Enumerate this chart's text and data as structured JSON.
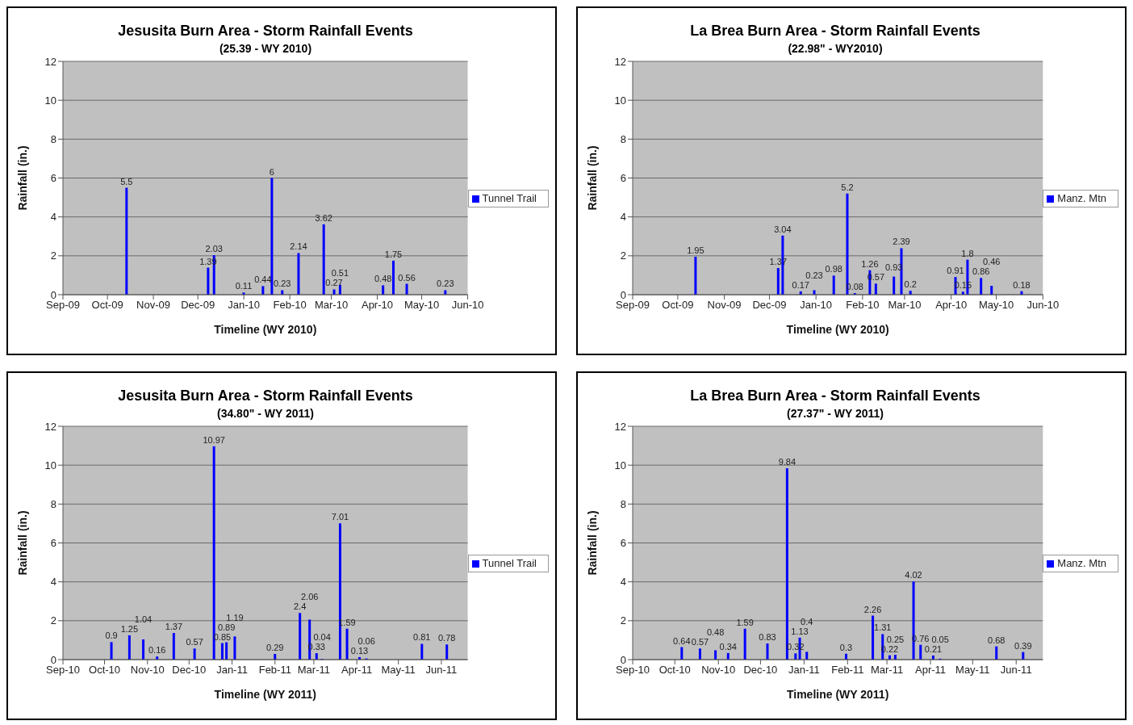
{
  "chart_data": [
    {
      "type": "bar",
      "title": "Jesusita Burn Area - Storm Rainfall Events",
      "subtitle": "(25.39 - WY 2010)",
      "xlabel": "Timeline (WY 2010)",
      "ylabel": "Rainfall (in.)",
      "x": [
        "2009-10-14",
        "2009-12-08",
        "2009-12-12",
        "2010-01-01",
        "2010-01-14",
        "2010-01-20",
        "2010-01-27",
        "2010-02-07",
        "2010-02-24",
        "2010-03-03",
        "2010-03-07",
        "2010-04-05",
        "2010-04-12",
        "2010-04-21",
        "2010-05-17"
      ],
      "series": [
        {
          "name": "Tunnel Trail",
          "color": "#0000ff",
          "values": [
            5.5,
            1.39,
            2.03,
            0.11,
            0.44,
            6,
            0.23,
            2.14,
            3.62,
            0.27,
            0.51,
            0.48,
            1.75,
            0.56,
            0.23
          ]
        }
      ],
      "xlim": [
        "2009-09-01",
        "2010-06-01"
      ],
      "xticks": [
        {
          "value": "2009-09-01",
          "label": "Sep-09"
        },
        {
          "value": "2009-10-01",
          "label": "Oct-09"
        },
        {
          "value": "2009-11-01",
          "label": "Nov-09"
        },
        {
          "value": "2009-12-01",
          "label": "Dec-09"
        },
        {
          "value": "2010-01-01",
          "label": "Jan-10"
        },
        {
          "value": "2010-02-01",
          "label": "Feb-10"
        },
        {
          "value": "2010-03-01",
          "label": "Mar-10"
        },
        {
          "value": "2010-04-01",
          "label": "Apr-10"
        },
        {
          "value": "2010-05-01",
          "label": "May-10"
        },
        {
          "value": "2010-06-01",
          "label": "Jun-10"
        }
      ],
      "ylim": [
        0,
        12
      ],
      "yticks": [
        0,
        2,
        4,
        6,
        8,
        10,
        12
      ],
      "grid": "y",
      "legend": "right",
      "data_labels": true
    },
    {
      "type": "bar",
      "title": "La Brea Burn Area - Storm Rainfall Events",
      "subtitle": "(22.98\" - WY2010)",
      "xlabel": "Timeline (WY 2010)",
      "ylabel": "Rainfall (in.)",
      "x": [
        "2009-10-13",
        "2009-12-07",
        "2009-12-10",
        "2009-12-22",
        "2009-12-31",
        "2010-01-13",
        "2010-01-22",
        "2010-01-27",
        "2010-02-06",
        "2010-02-10",
        "2010-02-22",
        "2010-02-27",
        "2010-03-05",
        "2010-04-04",
        "2010-04-09",
        "2010-04-12",
        "2010-04-21",
        "2010-04-28",
        "2010-05-18"
      ],
      "series": [
        {
          "name": "Manz. Mtn",
          "color": "#0000ff",
          "values": [
            1.95,
            1.37,
            3.04,
            0.17,
            0.23,
            0.98,
            5.2,
            0.08,
            1.26,
            0.57,
            0.93,
            2.39,
            0.2,
            0.91,
            0.15,
            1.8,
            0.86,
            0.46,
            0.18
          ]
        }
      ],
      "xlim": [
        "2009-09-01",
        "2010-06-01"
      ],
      "xticks": [
        {
          "value": "2009-09-01",
          "label": "Sep-09"
        },
        {
          "value": "2009-10-01",
          "label": "Oct-09"
        },
        {
          "value": "2009-11-01",
          "label": "Nov-09"
        },
        {
          "value": "2009-12-01",
          "label": "Dec-09"
        },
        {
          "value": "2010-01-01",
          "label": "Jan-10"
        },
        {
          "value": "2010-02-01",
          "label": "Feb-10"
        },
        {
          "value": "2010-03-01",
          "label": "Mar-10"
        },
        {
          "value": "2010-04-01",
          "label": "Apr-10"
        },
        {
          "value": "2010-05-01",
          "label": "May-10"
        },
        {
          "value": "2010-06-01",
          "label": "Jun-10"
        }
      ],
      "ylim": [
        0,
        12
      ],
      "yticks": [
        0,
        2,
        4,
        6,
        8,
        10,
        12
      ],
      "grid": "y",
      "legend": "right",
      "data_labels": true
    },
    {
      "type": "bar",
      "title": "Jesusita Burn Area - Storm Rainfall Events",
      "subtitle": "(34.80\" - WY 2011)",
      "xlabel": "Timeline (WY 2011)",
      "ylabel": "Rainfall (in.)",
      "x": [
        "2010-10-06",
        "2010-10-19",
        "2010-10-29",
        "2010-11-08",
        "2010-11-20",
        "2010-12-05",
        "2010-12-19",
        "2010-12-25",
        "2010-12-28",
        "2011-01-03",
        "2011-02-01",
        "2011-02-19",
        "2011-02-26",
        "2011-03-03",
        "2011-03-07",
        "2011-03-20",
        "2011-03-25",
        "2011-04-03",
        "2011-04-08",
        "2011-05-18",
        "2011-06-05"
      ],
      "series": [
        {
          "name": "Tunnel Trail",
          "color": "#0000ff",
          "values": [
            0.9,
            1.25,
            1.04,
            0.16,
            1.37,
            0.57,
            10.97,
            0.85,
            0.89,
            1.19,
            0.29,
            2.4,
            2.06,
            0.33,
            0.04,
            7.01,
            1.59,
            0.13,
            0.06,
            0.81,
            0.78
          ]
        }
      ],
      "xlim": [
        "2010-09-01",
        "2011-06-20"
      ],
      "xticks": [
        {
          "value": "2010-09-01",
          "label": "Sep-10"
        },
        {
          "value": "2010-10-01",
          "label": "Oct-10"
        },
        {
          "value": "2010-11-01",
          "label": "Nov-10"
        },
        {
          "value": "2010-12-01",
          "label": "Dec-10"
        },
        {
          "value": "2011-01-01",
          "label": "Jan-11"
        },
        {
          "value": "2011-02-01",
          "label": "Feb-11"
        },
        {
          "value": "2011-03-01",
          "label": "Mar-11"
        },
        {
          "value": "2011-04-01",
          "label": "Apr-11"
        },
        {
          "value": "2011-05-01",
          "label": "May-11"
        },
        {
          "value": "2011-06-01",
          "label": "Jun-11"
        }
      ],
      "ylim": [
        0,
        12
      ],
      "yticks": [
        0,
        2,
        4,
        6,
        8,
        10,
        12
      ],
      "grid": "y",
      "legend": "right",
      "data_labels": true
    },
    {
      "type": "bar",
      "title": "La Brea Burn Area - Storm Rainfall Events",
      "subtitle": "(27.37\" - WY 2011)",
      "xlabel": "Timeline (WY 2011)",
      "ylabel": "Rainfall (in.)",
      "x": [
        "2010-10-06",
        "2010-10-19",
        "2010-10-30",
        "2010-11-08",
        "2010-11-20",
        "2010-12-06",
        "2010-12-20",
        "2010-12-26",
        "2010-12-29",
        "2011-01-03",
        "2011-01-31",
        "2011-02-19",
        "2011-02-26",
        "2011-03-03",
        "2011-03-07",
        "2011-03-20",
        "2011-03-25",
        "2011-04-03",
        "2011-04-08",
        "2011-05-18",
        "2011-06-06"
      ],
      "series": [
        {
          "name": "Manz. Mtn",
          "color": "#0000ff",
          "values": [
            0.64,
            0.57,
            0.48,
            0.34,
            1.59,
            0.83,
            9.84,
            0.32,
            1.13,
            0.4,
            0.3,
            2.26,
            1.31,
            0.22,
            0.25,
            4.02,
            0.76,
            0.21,
            0.05,
            0.68,
            0.39
          ]
        }
      ],
      "xlim": [
        "2010-09-01",
        "2011-06-20"
      ],
      "xticks": [
        {
          "value": "2010-09-01",
          "label": "Sep-10"
        },
        {
          "value": "2010-10-01",
          "label": "Oct-10"
        },
        {
          "value": "2010-11-01",
          "label": "Nov-10"
        },
        {
          "value": "2010-12-01",
          "label": "Dec-10"
        },
        {
          "value": "2011-01-01",
          "label": "Jan-11"
        },
        {
          "value": "2011-02-01",
          "label": "Feb-11"
        },
        {
          "value": "2011-03-01",
          "label": "Mar-11"
        },
        {
          "value": "2011-04-01",
          "label": "Apr-11"
        },
        {
          "value": "2011-05-01",
          "label": "May-11"
        },
        {
          "value": "2011-06-01",
          "label": "Jun-11"
        }
      ],
      "ylim": [
        0,
        12
      ],
      "yticks": [
        0,
        2,
        4,
        6,
        8,
        10,
        12
      ],
      "grid": "y",
      "legend": "right",
      "data_labels": true
    }
  ]
}
